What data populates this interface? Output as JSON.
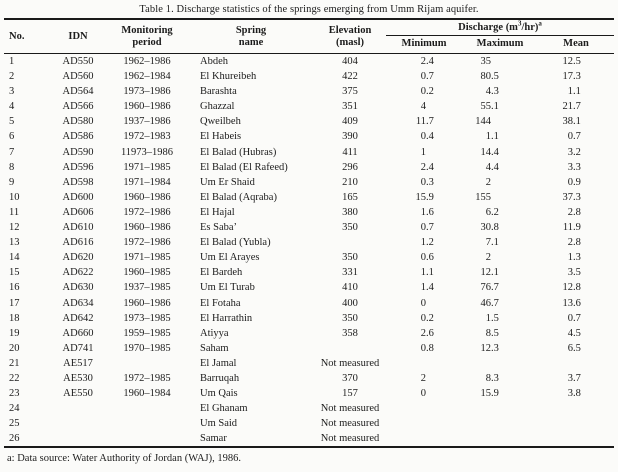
{
  "title": "Table 1. Discharge statistics of the springs emerging from Umm Rijam aquifer.",
  "colors": {
    "background": "#fbfbf9",
    "text": "#1c1c1c",
    "rule": "#1a1a1a"
  },
  "table": {
    "headers": {
      "no": "No.",
      "idn": "IDN",
      "period": "Monitoring\nperiod",
      "name": "Spring\nname",
      "elevation": "Elevation\n(masl)",
      "discharge_prefix": "Discharge (m",
      "discharge_sup_exp": "3",
      "discharge_mid": "/hr)",
      "discharge_sup_note": "a",
      "minimum": "Minimum",
      "maximum": "Maximum",
      "mean": "Mean"
    },
    "rows": [
      {
        "no": "1",
        "idn": "AD550",
        "period": "1962–1986",
        "name": "Abdeh",
        "elevation": "404",
        "min": "2.4",
        "max": "35",
        "mean": "12.5"
      },
      {
        "no": "2",
        "idn": "AD560",
        "period": "1962–1984",
        "name": "El Khureibeh",
        "elevation": "422",
        "min": "0.7",
        "max": "80.5",
        "mean": "17.3"
      },
      {
        "no": "3",
        "idn": "AD564",
        "period": "1973–1986",
        "name": "Barashta",
        "elevation": "375",
        "min": "0.2",
        "max": "4.3",
        "mean": "1.1"
      },
      {
        "no": "4",
        "idn": "AD566",
        "period": "1960–1986",
        "name": "Ghazzal",
        "elevation": "351",
        "min": "4",
        "max": "55.1",
        "mean": "21.7"
      },
      {
        "no": "5",
        "idn": "AD580",
        "period": "1937–1986",
        "name": "Qweilbeh",
        "elevation": "409",
        "min": "11.7",
        "max": "144",
        "mean": "38.1"
      },
      {
        "no": "6",
        "idn": "AD586",
        "period": "1972–1983",
        "name": "El Habeis",
        "elevation": "390",
        "min": "0.4",
        "max": "1.1",
        "mean": "0.7"
      },
      {
        "no": "7",
        "idn": "AD590",
        "period": "11973–1986",
        "name": "El Balad (Hubras)",
        "elevation": "411",
        "min": "1",
        "max": "14.4",
        "mean": "3.2"
      },
      {
        "no": "8",
        "idn": "AD596",
        "period": "1971–1985",
        "name": "El Balad (El Rafeed)",
        "elevation": "296",
        "min": "2.4",
        "max": "4.4",
        "mean": "3.3"
      },
      {
        "no": "9",
        "idn": "AD598",
        "period": "1971–1984",
        "name": "Um Er Shaid",
        "elevation": "210",
        "min": "0.3",
        "max": "2",
        "mean": "0.9"
      },
      {
        "no": "10",
        "idn": "AD600",
        "period": "1960–1986",
        "name": "El Balad (Aqraba)",
        "elevation": "165",
        "min": "15.9",
        "max": "155",
        "mean": "37.3"
      },
      {
        "no": "11",
        "idn": "AD606",
        "period": "1972–1986",
        "name": "El Hajal",
        "elevation": "380",
        "min": "1.6",
        "max": "6.2",
        "mean": "2.8"
      },
      {
        "no": "12",
        "idn": "AD610",
        "period": "1960–1986",
        "name": "Es Saba’",
        "elevation": "350",
        "min": "0.7",
        "max": "30.8",
        "mean": "11.9"
      },
      {
        "no": "13",
        "idn": "AD616",
        "period": "1972–1986",
        "name": "El Balad (Yubla)",
        "elevation": "",
        "min": "1.2",
        "max": "7.1",
        "mean": "2.8"
      },
      {
        "no": "14",
        "idn": "AD620",
        "period": "1971–1985",
        "name": "Um El Arayes",
        "elevation": "350",
        "min": "0.6",
        "max": "2",
        "mean": "1.3"
      },
      {
        "no": "15",
        "idn": "AD622",
        "period": "1960–1985",
        "name": "El Bardeh",
        "elevation": "331",
        "min": "1.1",
        "max": "12.1",
        "mean": "3.5"
      },
      {
        "no": "16",
        "idn": "AD630",
        "period": "1937–1985",
        "name": "Um El Turab",
        "elevation": "410",
        "min": "1.4",
        "max": "76.7",
        "mean": "12.8"
      },
      {
        "no": "17",
        "idn": "AD634",
        "period": "1960–1986",
        "name": "El Fotaha",
        "elevation": "400",
        "min": "0",
        "max": "46.7",
        "mean": "13.6"
      },
      {
        "no": "18",
        "idn": "AD642",
        "period": "1973–1985",
        "name": "El Harrathin",
        "elevation": "350",
        "min": "0.2",
        "max": "1.5",
        "mean": "0.7"
      },
      {
        "no": "19",
        "idn": "AD660",
        "period": "1959–1985",
        "name": "Atiyya",
        "elevation": "358",
        "min": "2.6",
        "max": "8.5",
        "mean": "4.5"
      },
      {
        "no": "20",
        "idn": "AD741",
        "period": "1970–1985",
        "name": "Saham",
        "elevation": "",
        "min": "0.8",
        "max": "12.3",
        "mean": "6.5"
      },
      {
        "no": "21",
        "idn": "AE517",
        "period": "",
        "name": "El Jamal",
        "elevation": "Not measured",
        "min": "",
        "max": "",
        "mean": ""
      },
      {
        "no": "22",
        "idn": "AE530",
        "period": "1972–1985",
        "name": "Barruqah",
        "elevation": "370",
        "min": "2",
        "max": "8.3",
        "mean": "3.7"
      },
      {
        "no": "23",
        "idn": "AE550",
        "period": "1960–1984",
        "name": "Um Qais",
        "elevation": "157",
        "min": "0",
        "max": "15.9",
        "mean": "3.8"
      },
      {
        "no": "24",
        "idn": "",
        "period": "",
        "name": "El Ghanam",
        "elevation": "Not measured",
        "min": "",
        "max": "",
        "mean": ""
      },
      {
        "no": "25",
        "idn": "",
        "period": "",
        "name": "Um Said",
        "elevation": "Not measured",
        "min": "",
        "max": "",
        "mean": ""
      },
      {
        "no": "26",
        "idn": "",
        "period": "",
        "name": "Samar",
        "elevation": "Not measured",
        "min": "",
        "max": "",
        "mean": ""
      }
    ]
  },
  "footnote": "a: Data source: Water Authority of Jordan (WAJ), 1986."
}
